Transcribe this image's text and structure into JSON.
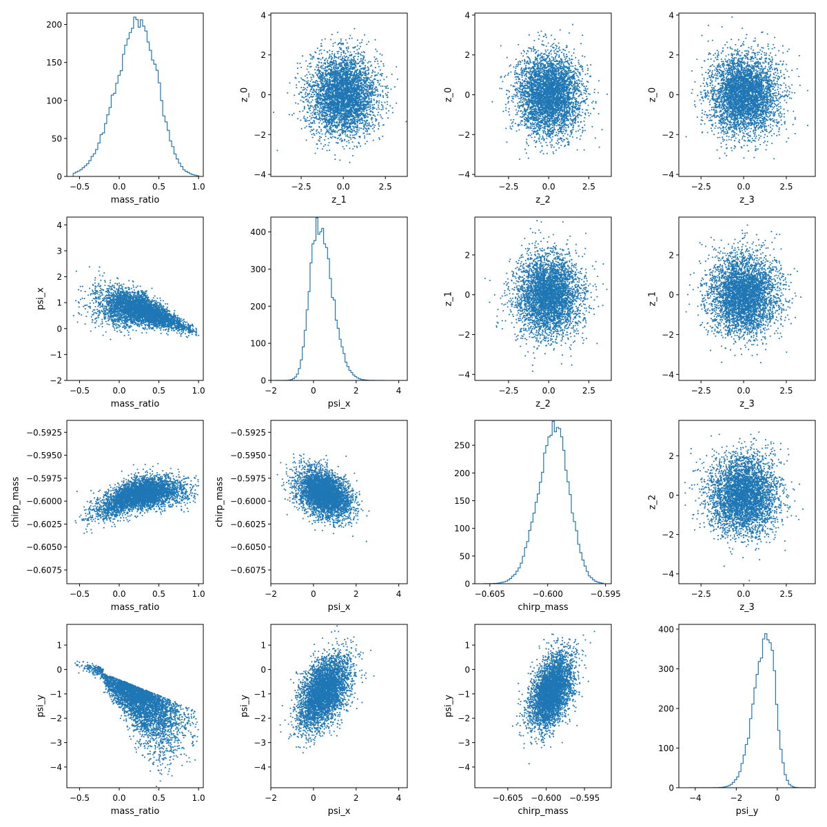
{
  "colors": {
    "series": "#1f77b4",
    "axes": "#000000",
    "background": "#ffffff"
  },
  "chart_data": [
    {
      "row": 0,
      "col": 0,
      "type": "histogram",
      "xlabel": "mass_ratio",
      "ylabel": "",
      "xlim": [
        -0.66,
        1.06
      ],
      "ylim": [
        0,
        215
      ],
      "xticks": [
        {
          "v": -0.5,
          "t": "−0.5"
        },
        {
          "v": 0,
          "t": "0.0"
        },
        {
          "v": 0.5,
          "t": "0.5"
        },
        {
          "v": 1.0,
          "t": "1.0"
        }
      ],
      "yticks": [
        {
          "v": 0,
          "t": "0"
        },
        {
          "v": 50,
          "t": "50"
        },
        {
          "v": 100,
          "t": "100"
        },
        {
          "v": 150,
          "t": "150"
        },
        {
          "v": 200,
          "t": "200"
        }
      ],
      "dist": {
        "kind": "skewed",
        "mu": 0.27,
        "sl": 0.3,
        "sr": 0.22,
        "lo": -0.58,
        "hi": 1.0,
        "peak": 205
      }
    },
    {
      "row": 0,
      "col": 1,
      "type": "scatter",
      "xlabel": "z_1",
      "ylabel": "z_0",
      "xlim": [
        -4.3,
        3.8
      ],
      "ylim": [
        -4.1,
        4.1
      ],
      "xticks": [
        {
          "v": -2.5,
          "t": "−2.5"
        },
        {
          "v": 0,
          "t": "0.0"
        },
        {
          "v": 2.5,
          "t": "2.5"
        }
      ],
      "yticks": [
        {
          "v": -4,
          "t": "−4"
        },
        {
          "v": -2,
          "t": "−2"
        },
        {
          "v": 0,
          "t": "0"
        },
        {
          "v": 2,
          "t": "2"
        },
        {
          "v": 4,
          "t": "4"
        }
      ],
      "dist": {
        "kind": "normal2d",
        "mx": 0,
        "my": 0,
        "sx": 1,
        "sy": 1,
        "rho": 0
      }
    },
    {
      "row": 0,
      "col": 2,
      "type": "scatter",
      "xlabel": "z_2",
      "ylabel": "z_0",
      "xlim": [
        -4.6,
        3.9
      ],
      "ylim": [
        -4.1,
        4.1
      ],
      "xticks": [
        {
          "v": -2.5,
          "t": "−2.5"
        },
        {
          "v": 0,
          "t": "0.0"
        },
        {
          "v": 2.5,
          "t": "2.5"
        }
      ],
      "yticks": [
        {
          "v": -4,
          "t": "−4"
        },
        {
          "v": -2,
          "t": "−2"
        },
        {
          "v": 0,
          "t": "0"
        },
        {
          "v": 2,
          "t": "2"
        },
        {
          "v": 4,
          "t": "4"
        }
      ],
      "dist": {
        "kind": "normal2d",
        "mx": 0,
        "my": 0,
        "sx": 1,
        "sy": 1,
        "rho": 0
      }
    },
    {
      "row": 0,
      "col": 3,
      "type": "scatter",
      "xlabel": "z_3",
      "ylabel": "z_0",
      "xlim": [
        -3.8,
        4.2
      ],
      "ylim": [
        -4.1,
        4.1
      ],
      "xticks": [
        {
          "v": -2.5,
          "t": "−2.5"
        },
        {
          "v": 0,
          "t": "0.0"
        },
        {
          "v": 2.5,
          "t": "2.5"
        }
      ],
      "yticks": [
        {
          "v": -4,
          "t": "−4"
        },
        {
          "v": -2,
          "t": "−2"
        },
        {
          "v": 0,
          "t": "0"
        },
        {
          "v": 2,
          "t": "2"
        },
        {
          "v": 4,
          "t": "4"
        }
      ],
      "dist": {
        "kind": "normal2d",
        "mx": 0,
        "my": 0,
        "sx": 1,
        "sy": 1,
        "rho": 0
      }
    },
    {
      "row": 1,
      "col": 0,
      "type": "scatter",
      "xlabel": "mass_ratio",
      "ylabel": "psi_x",
      "xlim": [
        -0.66,
        1.06
      ],
      "ylim": [
        -2,
        4.3
      ],
      "xticks": [
        {
          "v": -0.5,
          "t": "−0.5"
        },
        {
          "v": 0,
          "t": "0.0"
        },
        {
          "v": 0.5,
          "t": "0.5"
        },
        {
          "v": 1.0,
          "t": "1.0"
        }
      ],
      "yticks": [
        {
          "v": -2,
          "t": "−2"
        },
        {
          "v": -1,
          "t": "−1"
        },
        {
          "v": 0,
          "t": "0"
        },
        {
          "v": 1,
          "t": "1"
        },
        {
          "v": 2,
          "t": "2"
        },
        {
          "v": 3,
          "t": "3"
        },
        {
          "v": 4,
          "t": "4"
        }
      ],
      "dist": {
        "kind": "mr_psix"
      }
    },
    {
      "row": 1,
      "col": 1,
      "type": "histogram",
      "xlabel": "psi_x",
      "ylabel": "",
      "xlim": [
        -2,
        4.4
      ],
      "ylim": [
        0,
        440
      ],
      "xticks": [
        {
          "v": -2,
          "t": "−2"
        },
        {
          "v": 0,
          "t": "0"
        },
        {
          "v": 2,
          "t": "2"
        },
        {
          "v": 4,
          "t": "4"
        }
      ],
      "yticks": [
        {
          "v": 0,
          "t": "0"
        },
        {
          "v": 100,
          "t": "100"
        },
        {
          "v": 200,
          "t": "200"
        },
        {
          "v": 300,
          "t": "300"
        },
        {
          "v": 400,
          "t": "400"
        }
      ],
      "dist": {
        "kind": "skewed",
        "mu": 0.2,
        "sl": 0.38,
        "sr": 0.65,
        "lo": -1.8,
        "hi": 3.3,
        "peak": 420
      }
    },
    {
      "row": 1,
      "col": 2,
      "type": "scatter",
      "xlabel": "z_2",
      "ylabel": "z_1",
      "xlim": [
        -4.6,
        3.9
      ],
      "ylim": [
        -4.3,
        3.9
      ],
      "xticks": [
        {
          "v": -2.5,
          "t": "−2.5"
        },
        {
          "v": 0,
          "t": "0.0"
        },
        {
          "v": 2.5,
          "t": "2.5"
        }
      ],
      "yticks": [
        {
          "v": -4,
          "t": "−4"
        },
        {
          "v": -2,
          "t": "−2"
        },
        {
          "v": 0,
          "t": "0"
        },
        {
          "v": 2,
          "t": "2"
        }
      ],
      "dist": {
        "kind": "normal2d",
        "mx": 0,
        "my": 0,
        "sx": 1,
        "sy": 1,
        "rho": 0
      }
    },
    {
      "row": 1,
      "col": 3,
      "type": "scatter",
      "xlabel": "z_3",
      "ylabel": "z_1",
      "xlim": [
        -3.8,
        4.2
      ],
      "ylim": [
        -4.3,
        3.9
      ],
      "xticks": [
        {
          "v": -2.5,
          "t": "−2.5"
        },
        {
          "v": 0,
          "t": "0.0"
        },
        {
          "v": 2.5,
          "t": "2.5"
        }
      ],
      "yticks": [
        {
          "v": -4,
          "t": "−4"
        },
        {
          "v": -2,
          "t": "−2"
        },
        {
          "v": 0,
          "t": "0"
        },
        {
          "v": 2,
          "t": "2"
        }
      ],
      "dist": {
        "kind": "normal2d",
        "mx": 0,
        "my": 0,
        "sx": 1,
        "sy": 1,
        "rho": 0
      }
    },
    {
      "row": 2,
      "col": 0,
      "type": "scatter",
      "xlabel": "mass_ratio",
      "ylabel": "chirp_mass",
      "xlim": [
        -0.66,
        1.06
      ],
      "ylim": [
        -0.609,
        -0.5912
      ],
      "xticks": [
        {
          "v": -0.5,
          "t": "−0.5"
        },
        {
          "v": 0,
          "t": "0.0"
        },
        {
          "v": 0.5,
          "t": "0.5"
        },
        {
          "v": 1.0,
          "t": "1.0"
        }
      ],
      "yticks": [
        {
          "v": -0.6075,
          "t": "−0.6075"
        },
        {
          "v": -0.605,
          "t": "−0.6050"
        },
        {
          "v": -0.6025,
          "t": "−0.6025"
        },
        {
          "v": -0.6,
          "t": "−0.6000"
        },
        {
          "v": -0.5975,
          "t": "−0.5975"
        },
        {
          "v": -0.595,
          "t": "−0.5950"
        },
        {
          "v": -0.5925,
          "t": "−0.5925"
        }
      ],
      "dist": {
        "kind": "mr_cm"
      }
    },
    {
      "row": 2,
      "col": 1,
      "type": "scatter",
      "xlabel": "psi_x",
      "ylabel": "chirp_mass",
      "xlim": [
        -2,
        4.4
      ],
      "ylim": [
        -0.609,
        -0.5912
      ],
      "xticks": [
        {
          "v": -2,
          "t": "−2"
        },
        {
          "v": 0,
          "t": "0"
        },
        {
          "v": 2,
          "t": "2"
        },
        {
          "v": 4,
          "t": "4"
        }
      ],
      "yticks": [
        {
          "v": -0.6075,
          "t": "−0.6075"
        },
        {
          "v": -0.605,
          "t": "−0.6050"
        },
        {
          "v": -0.6025,
          "t": "−0.6025"
        },
        {
          "v": -0.6,
          "t": "−0.6000"
        },
        {
          "v": -0.5975,
          "t": "−0.5975"
        },
        {
          "v": -0.595,
          "t": "−0.5950"
        },
        {
          "v": -0.5925,
          "t": "−0.5925"
        }
      ],
      "dist": {
        "kind": "normal2d",
        "mx": 0.5,
        "my": -0.5992,
        "sx": 0.6,
        "sy": 0.0013,
        "rho": -0.35
      }
    },
    {
      "row": 2,
      "col": 2,
      "type": "histogram",
      "xlabel": "chirp_mass",
      "ylabel": "",
      "xlim": [
        -0.6063,
        -0.5945
      ],
      "ylim": [
        0,
        295
      ],
      "xticks": [
        {
          "v": -0.605,
          "t": "−0.605"
        },
        {
          "v": -0.6,
          "t": "−0.600"
        },
        {
          "v": -0.595,
          "t": "−0.595"
        }
      ],
      "yticks": [
        {
          "v": 0,
          "t": "0"
        },
        {
          "v": 50,
          "t": "50"
        },
        {
          "v": 100,
          "t": "100"
        },
        {
          "v": 150,
          "t": "150"
        },
        {
          "v": 200,
          "t": "200"
        },
        {
          "v": 250,
          "t": "250"
        }
      ],
      "dist": {
        "kind": "skewed",
        "mu": -0.5993,
        "sl": 0.0015,
        "sr": 0.0012,
        "lo": -0.6055,
        "hi": -0.5952,
        "peak": 280
      }
    },
    {
      "row": 2,
      "col": 3,
      "type": "scatter",
      "xlabel": "z_3",
      "ylabel": "z_2",
      "xlim": [
        -3.8,
        4.2
      ],
      "ylim": [
        -4.5,
        3.8
      ],
      "xticks": [
        {
          "v": -2.5,
          "t": "−2.5"
        },
        {
          "v": 0,
          "t": "0.0"
        },
        {
          "v": 2.5,
          "t": "2.5"
        }
      ],
      "yticks": [
        {
          "v": -4,
          "t": "−4"
        },
        {
          "v": -2,
          "t": "−2"
        },
        {
          "v": 0,
          "t": "0"
        },
        {
          "v": 2,
          "t": "2"
        }
      ],
      "dist": {
        "kind": "normal2d",
        "mx": 0,
        "my": 0,
        "sx": 1,
        "sy": 1,
        "rho": 0
      }
    },
    {
      "row": 3,
      "col": 0,
      "type": "scatter",
      "xlabel": "mass_ratio",
      "ylabel": "psi_y",
      "xlim": [
        -0.66,
        1.06
      ],
      "ylim": [
        -4.85,
        1.85
      ],
      "xticks": [
        {
          "v": -0.5,
          "t": "−0.5"
        },
        {
          "v": 0,
          "t": "0.0"
        },
        {
          "v": 0.5,
          "t": "0.5"
        },
        {
          "v": 1.0,
          "t": "1.0"
        }
      ],
      "yticks": [
        {
          "v": -4,
          "t": "−4"
        },
        {
          "v": -3,
          "t": "−3"
        },
        {
          "v": -2,
          "t": "−2"
        },
        {
          "v": -1,
          "t": "−1"
        },
        {
          "v": 0,
          "t": "0"
        },
        {
          "v": 1,
          "t": "1"
        }
      ],
      "dist": {
        "kind": "mr_psiy"
      }
    },
    {
      "row": 3,
      "col": 1,
      "type": "scatter",
      "xlabel": "psi_x",
      "ylabel": "psi_y",
      "xlim": [
        -2,
        4.4
      ],
      "ylim": [
        -4.85,
        1.85
      ],
      "xticks": [
        {
          "v": -2,
          "t": "−2"
        },
        {
          "v": 0,
          "t": "0"
        },
        {
          "v": 2,
          "t": "2"
        },
        {
          "v": 4,
          "t": "4"
        }
      ],
      "yticks": [
        {
          "v": -4,
          "t": "−4"
        },
        {
          "v": -3,
          "t": "−3"
        },
        {
          "v": -2,
          "t": "−2"
        },
        {
          "v": -1,
          "t": "−1"
        },
        {
          "v": 0,
          "t": "0"
        },
        {
          "v": 1,
          "t": "1"
        }
      ],
      "dist": {
        "kind": "normal2d",
        "mx": 0.5,
        "my": -0.9,
        "sx": 0.6,
        "sy": 0.75,
        "rho": 0.5
      }
    },
    {
      "row": 3,
      "col": 2,
      "type": "scatter",
      "xlabel": "chirp_mass",
      "ylabel": "psi_y",
      "xlim": [
        -0.6093,
        -0.5915
      ],
      "ylim": [
        -4.85,
        1.85
      ],
      "xticks": [
        {
          "v": -0.605,
          "t": "−0.605"
        },
        {
          "v": -0.6,
          "t": "−0.600"
        },
        {
          "v": -0.595,
          "t": "−0.595"
        }
      ],
      "yticks": [
        {
          "v": -4,
          "t": "−4"
        },
        {
          "v": -3,
          "t": "−3"
        },
        {
          "v": -2,
          "t": "−2"
        },
        {
          "v": -1,
          "t": "−1"
        },
        {
          "v": 0,
          "t": "0"
        },
        {
          "v": 1,
          "t": "1"
        }
      ],
      "dist": {
        "kind": "normal2d",
        "mx": -0.5993,
        "my": -0.9,
        "sx": 0.0014,
        "sy": 0.75,
        "rho": 0.45
      }
    },
    {
      "row": 3,
      "col": 3,
      "type": "histogram",
      "xlabel": "psi_y",
      "ylabel": "",
      "xlim": [
        -4.8,
        1.85
      ],
      "ylim": [
        0,
        412
      ],
      "xticks": [
        {
          "v": -4,
          "t": "−4"
        },
        {
          "v": -2,
          "t": "−2"
        },
        {
          "v": 0,
          "t": "0"
        }
      ],
      "yticks": [
        {
          "v": 0,
          "t": "0"
        },
        {
          "v": 100,
          "t": "100"
        },
        {
          "v": 200,
          "t": "200"
        },
        {
          "v": 300,
          "t": "300"
        },
        {
          "v": 400,
          "t": "400"
        }
      ],
      "dist": {
        "kind": "skewed",
        "mu": -0.45,
        "sl": 0.65,
        "sr": 0.38,
        "lo": -4.3,
        "hi": 1.6,
        "peak": 390
      }
    }
  ]
}
